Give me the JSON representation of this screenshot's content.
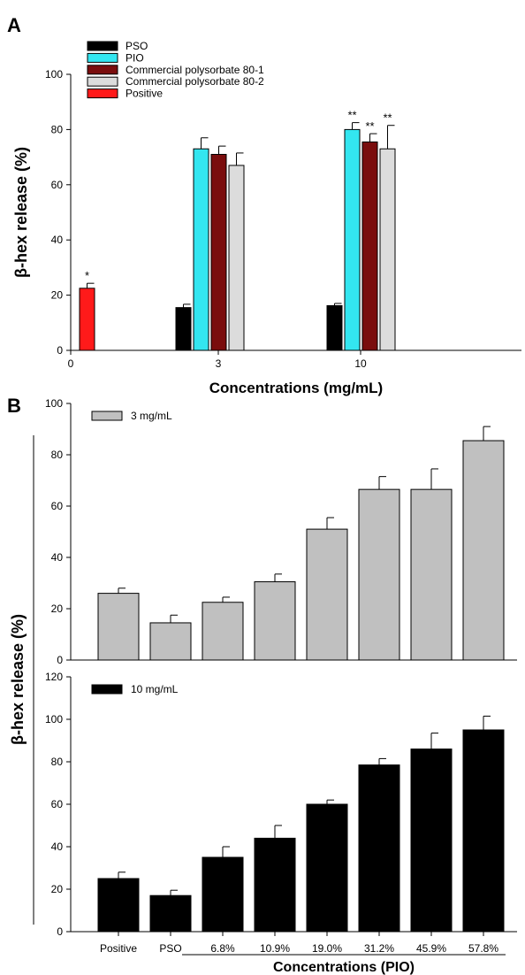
{
  "panels": {
    "a": {
      "label": "A"
    },
    "b": {
      "label": "B"
    }
  },
  "chart_data": [
    {
      "type": "bar",
      "panel": "A",
      "xlabel": "Concentrations (mg/mL)",
      "ylabel": "β-hex release (%)",
      "ylim": [
        0,
        100
      ],
      "yticks": [
        0,
        20,
        40,
        60,
        80,
        100
      ],
      "xticks": [
        "0",
        "3",
        "10"
      ],
      "legend_position": "top-left",
      "grid": false,
      "series": [
        {
          "name": "PSO",
          "color": "#000000",
          "values": [
            null,
            15.5,
            16.2
          ],
          "errors": [
            null,
            1.2,
            0.8
          ],
          "marks": [
            null,
            "",
            ""
          ]
        },
        {
          "name": "PIO",
          "color": "#33e6f0",
          "values": [
            null,
            73,
            80
          ],
          "errors": [
            null,
            4,
            2.5
          ],
          "marks": [
            null,
            "",
            "**"
          ]
        },
        {
          "name": "Commercial polysorbate 80-1",
          "color": "#7a0d0d",
          "values": [
            null,
            71,
            75.5
          ],
          "errors": [
            null,
            3,
            3
          ],
          "marks": [
            null,
            "",
            "**"
          ]
        },
        {
          "name": "Commercial polysorbate 80-2",
          "color": "#dcdcdc",
          "values": [
            null,
            67,
            73
          ],
          "errors": [
            null,
            4.5,
            8.5
          ],
          "marks": [
            null,
            "",
            "**"
          ]
        },
        {
          "name": "Positive",
          "color": "#ff1a1a",
          "values": [
            22.5,
            null,
            null
          ],
          "errors": [
            1.8,
            null,
            null
          ],
          "marks": [
            "*",
            null,
            null
          ]
        }
      ]
    },
    {
      "type": "bar",
      "panel": "B-top",
      "ylim": [
        0,
        100
      ],
      "yticks": [
        0,
        20,
        40,
        60,
        80,
        100
      ],
      "legend_position": "top-left",
      "grid": false,
      "series": [
        {
          "name": "3 mg/mL",
          "color": "#c0c0c0",
          "values": [
            26,
            14.5,
            22.5,
            30.5,
            51,
            66.5,
            66.5,
            85.5
          ],
          "errors": [
            2,
            3,
            2,
            3,
            4.5,
            5,
            8,
            5.5
          ]
        }
      ]
    },
    {
      "type": "bar",
      "panel": "B-bottom",
      "xlabel": "Concentrations (PIO)",
      "ylabel": "β-hex release (%)",
      "categories": [
        "Positive",
        "PSO",
        "6.8%",
        "10.9%",
        "19.0%",
        "31.2%",
        "45.9%",
        "57.8%"
      ],
      "ylim": [
        0,
        120
      ],
      "yticks": [
        0,
        20,
        40,
        60,
        80,
        100,
        120
      ],
      "legend_position": "top-left",
      "grid": false,
      "series": [
        {
          "name": "10 mg/mL",
          "color": "#000000",
          "values": [
            25,
            17,
            35,
            44,
            60,
            78.5,
            86,
            95
          ],
          "errors": [
            3,
            2.5,
            5,
            6,
            2,
            3,
            7.5,
            6.5
          ]
        }
      ]
    }
  ]
}
